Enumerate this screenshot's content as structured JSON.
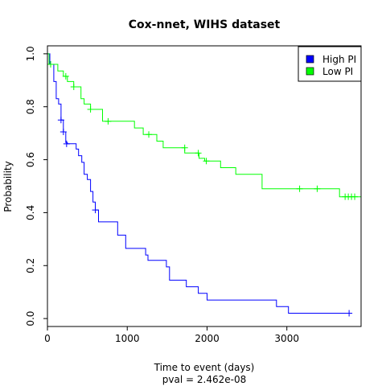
{
  "chart_data": {
    "type": "line",
    "title": "Cox-nnet, WIHS dataset",
    "xlabel": "Time to event (days)",
    "subtitle": "pval = 2.462e-08",
    "ylabel": "Probability",
    "xlim": [
      0,
      3930
    ],
    "ylim": [
      -0.03,
      1.03
    ],
    "x_ticks": [
      0,
      1000,
      2000,
      3000
    ],
    "y_ticks": [
      0.0,
      0.2,
      0.4,
      0.6,
      0.8,
      1.0
    ],
    "x_tick_labels": [
      "0",
      "1000",
      "2000",
      "3000"
    ],
    "y_tick_labels": [
      "0.0",
      "0.2",
      "0.4",
      "0.6",
      "0.8",
      "1.0"
    ],
    "grid": false,
    "legend_position": "top-right",
    "series": [
      {
        "name": "High PI",
        "color": "#0000ff",
        "steps": [
          [
            0,
            1.0
          ],
          [
            30,
            0.96
          ],
          [
            80,
            0.895
          ],
          [
            110,
            0.83
          ],
          [
            140,
            0.81
          ],
          [
            170,
            0.75
          ],
          [
            200,
            0.705
          ],
          [
            230,
            0.665
          ],
          [
            250,
            0.66
          ],
          [
            360,
            0.64
          ],
          [
            390,
            0.615
          ],
          [
            430,
            0.59
          ],
          [
            460,
            0.545
          ],
          [
            500,
            0.525
          ],
          [
            540,
            0.48
          ],
          [
            570,
            0.44
          ],
          [
            600,
            0.41
          ],
          [
            640,
            0.365
          ],
          [
            880,
            0.315
          ],
          [
            980,
            0.265
          ],
          [
            1230,
            0.24
          ],
          [
            1260,
            0.22
          ],
          [
            1490,
            0.195
          ],
          [
            1530,
            0.145
          ],
          [
            1740,
            0.12
          ],
          [
            1890,
            0.095
          ],
          [
            2000,
            0.07
          ],
          [
            2870,
            0.045
          ],
          [
            3020,
            0.02
          ],
          [
            3780,
            0.02
          ]
        ],
        "censored": [
          [
            170,
            0.75
          ],
          [
            200,
            0.705
          ],
          [
            240,
            0.66
          ],
          [
            600,
            0.41
          ],
          [
            3780,
            0.02
          ]
        ]
      },
      {
        "name": "Low PI",
        "color": "#00ff00",
        "steps": [
          [
            0,
            1.0
          ],
          [
            20,
            0.96
          ],
          [
            130,
            0.935
          ],
          [
            200,
            0.915
          ],
          [
            250,
            0.895
          ],
          [
            330,
            0.875
          ],
          [
            420,
            0.83
          ],
          [
            460,
            0.81
          ],
          [
            540,
            0.79
          ],
          [
            690,
            0.745
          ],
          [
            1090,
            0.72
          ],
          [
            1200,
            0.695
          ],
          [
            1370,
            0.67
          ],
          [
            1450,
            0.645
          ],
          [
            1720,
            0.625
          ],
          [
            1900,
            0.605
          ],
          [
            1970,
            0.595
          ],
          [
            2170,
            0.57
          ],
          [
            2360,
            0.545
          ],
          [
            2690,
            0.49
          ],
          [
            3660,
            0.46
          ],
          [
            3930,
            0.46
          ],
          [
            3930,
            0.0
          ]
        ],
        "censored": [
          [
            40,
            0.96
          ],
          [
            230,
            0.915
          ],
          [
            330,
            0.875
          ],
          [
            540,
            0.79
          ],
          [
            760,
            0.745
          ],
          [
            1270,
            0.695
          ],
          [
            1720,
            0.645
          ],
          [
            1890,
            0.625
          ],
          [
            1990,
            0.595
          ],
          [
            3160,
            0.49
          ],
          [
            3380,
            0.49
          ],
          [
            3730,
            0.46
          ],
          [
            3770,
            0.46
          ],
          [
            3810,
            0.46
          ],
          [
            3850,
            0.46
          ]
        ]
      }
    ]
  }
}
